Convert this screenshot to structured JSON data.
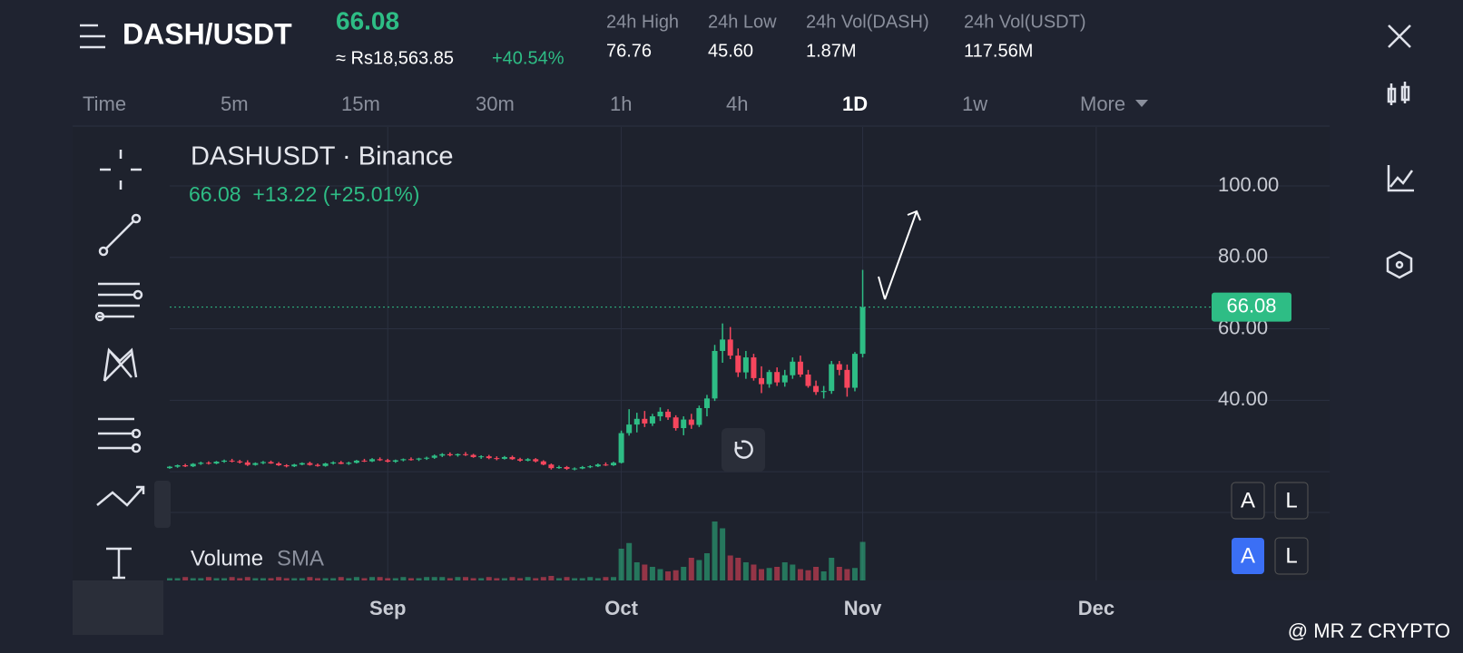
{
  "header": {
    "symbol": "DASH/USDT",
    "price": "66.08",
    "fiat_price": "≈ Rs18,563.85",
    "change": "+40.54%",
    "stats": [
      {
        "label": "24h High",
        "value": "76.76"
      },
      {
        "label": "24h Low",
        "value": "45.60"
      },
      {
        "label": "24h Vol(DASH)",
        "value": "1.87M"
      },
      {
        "label": "24h Vol(USDT)",
        "value": "117.56M"
      }
    ]
  },
  "timeframes": [
    "Time",
    "5m",
    "15m",
    "30m",
    "1h",
    "4h",
    "1D",
    "1w",
    "More"
  ],
  "chart_data": {
    "type": "candlestick",
    "title": "DASHUSDT · Binance",
    "subtitle": "66.08  +13.22 (+25.01%)",
    "volume_label": "Volume",
    "sma_label": "SMA",
    "last_price": 66.08,
    "last_price_label": "66.08",
    "up_color": "#2ebd85",
    "down_color": "#f6465d",
    "ylim": [
      8.6,
      116.5
    ],
    "yticks": [
      {
        "value": 20,
        "label": null
      },
      {
        "value": 40,
        "label": "40.00"
      },
      {
        "value": 60,
        "label": "60.00"
      },
      {
        "value": 80,
        "label": "80.00"
      },
      {
        "value": 100,
        "label": "100.00"
      }
    ],
    "xlim": [
      0,
      129.5
    ],
    "xticks": [
      {
        "value": 28,
        "label": "Sep"
      },
      {
        "value": 58,
        "label": "Oct"
      },
      {
        "value": 89,
        "label": "Nov"
      },
      {
        "value": 119,
        "label": "Dec"
      }
    ],
    "grid": true,
    "candles": [
      [
        21,
        21.6,
        20.8,
        21.4
      ],
      [
        21.4,
        22,
        21.1,
        21.8
      ],
      [
        21.8,
        22.2,
        21.3,
        21.5
      ],
      [
        21.5,
        22.4,
        21.3,
        22.2
      ],
      [
        22.2,
        22.8,
        21.9,
        22.5
      ],
      [
        22.5,
        22.9,
        22,
        22.3
      ],
      [
        22.3,
        23,
        22.1,
        22.8
      ],
      [
        22.8,
        23.4,
        22.5,
        23.1
      ],
      [
        23.1,
        23.6,
        22.6,
        22.9
      ],
      [
        22.9,
        23.3,
        22.3,
        22.6
      ],
      [
        22.6,
        23.2,
        21.6,
        21.9
      ],
      [
        21.9,
        22.6,
        21.7,
        22.4
      ],
      [
        22.4,
        23,
        22.1,
        22.7
      ],
      [
        22.7,
        23.1,
        22.2,
        22.3
      ],
      [
        22.3,
        22.7,
        21.6,
        21.8
      ],
      [
        21.8,
        22.1,
        21.2,
        21.5
      ],
      [
        21.5,
        22.2,
        21.3,
        22
      ],
      [
        22,
        22.6,
        21.8,
        22.4
      ],
      [
        22.4,
        22.8,
        21.7,
        21.9
      ],
      [
        21.9,
        22.3,
        21.4,
        21.6
      ],
      [
        21.6,
        22.5,
        21.4,
        22.3
      ],
      [
        22.3,
        22.9,
        22,
        22.6
      ],
      [
        22.6,
        23,
        22.1,
        22.2
      ],
      [
        22.2,
        22.8,
        21.9,
        22.5
      ],
      [
        22.5,
        23.3,
        22.3,
        23.1
      ],
      [
        23.1,
        23.6,
        22.7,
        22.9
      ],
      [
        22.9,
        23.8,
        22.7,
        23.5
      ],
      [
        23.5,
        24,
        23,
        23.2
      ],
      [
        23.2,
        23.6,
        22.6,
        22.8
      ],
      [
        22.8,
        23.4,
        22.5,
        23.2
      ],
      [
        23.2,
        23.7,
        22.9,
        23.5
      ],
      [
        23.5,
        24,
        23.1,
        23.4
      ],
      [
        23.4,
        23.9,
        23,
        23.7
      ],
      [
        23.7,
        24.2,
        23.3,
        23.9
      ],
      [
        23.9,
        24.8,
        23.6,
        24.5
      ],
      [
        24.5,
        25.2,
        24.1,
        24.9
      ],
      [
        24.9,
        25.4,
        24.3,
        24.6
      ],
      [
        24.6,
        25.1,
        24.2,
        24.9
      ],
      [
        24.9,
        25.5,
        24.4,
        24.7
      ],
      [
        24.7,
        25,
        23.9,
        24.1
      ],
      [
        24.1,
        24.6,
        23.6,
        24.3
      ],
      [
        24.3,
        24.7,
        23.5,
        23.8
      ],
      [
        23.8,
        24.3,
        23.2,
        23.6
      ],
      [
        23.6,
        24.4,
        23.4,
        24.1
      ],
      [
        24.1,
        24.5,
        23.3,
        23.5
      ],
      [
        23.5,
        23.9,
        22.8,
        23.1
      ],
      [
        23.1,
        23.8,
        22.9,
        23.5
      ],
      [
        23.5,
        23.8,
        22.6,
        22.9
      ],
      [
        22.9,
        23.2,
        21.8,
        22
      ],
      [
        22,
        22.3,
        20.6,
        21
      ],
      [
        21,
        21.7,
        20.8,
        21.3
      ],
      [
        21.3,
        21.6,
        20.5,
        20.8
      ],
      [
        20.8,
        21.2,
        20.4,
        20.9
      ],
      [
        20.9,
        21.6,
        20.7,
        21.3
      ],
      [
        21.3,
        21.8,
        21,
        21.5
      ],
      [
        21.5,
        22.3,
        21.3,
        22
      ],
      [
        22,
        22.6,
        21.6,
        21.8
      ],
      [
        21.8,
        22.8,
        21.6,
        22.5
      ],
      [
        22.5,
        31.5,
        22.3,
        30.8
      ],
      [
        30.8,
        37.5,
        30.1,
        33.2
      ],
      [
        33.2,
        36.5,
        31,
        34.8
      ],
      [
        34.8,
        37,
        32.5,
        33.5
      ],
      [
        33.5,
        36.2,
        32.8,
        35.5
      ],
      [
        35.5,
        38,
        34.2,
        36.8
      ],
      [
        36.8,
        37.5,
        34.5,
        35.2
      ],
      [
        35.2,
        35.8,
        31.5,
        32.2
      ],
      [
        32.2,
        35.5,
        30.2,
        34.6
      ],
      [
        34.6,
        36.2,
        32,
        33.1
      ],
      [
        33.1,
        38.5,
        32.5,
        37.8
      ],
      [
        37.8,
        41.5,
        35.5,
        40.5
      ],
      [
        40.5,
        55.5,
        39.8,
        53.8
      ],
      [
        53.8,
        61.5,
        50.5,
        57
      ],
      [
        57,
        60.5,
        51.5,
        52.5
      ],
      [
        52.5,
        54.5,
        46.5,
        47.8
      ],
      [
        47.8,
        53.8,
        46,
        52
      ],
      [
        52,
        53,
        45.5,
        46.2
      ],
      [
        46.2,
        49.5,
        42,
        44.5
      ],
      [
        44.5,
        48.5,
        43.5,
        47.9
      ],
      [
        47.9,
        49.2,
        44,
        45
      ],
      [
        45,
        48.5,
        43.8,
        47
      ],
      [
        47,
        52,
        46,
        50.8
      ],
      [
        50.8,
        52.5,
        46.5,
        47.2
      ],
      [
        47.2,
        48.5,
        43.5,
        44
      ],
      [
        44,
        45.5,
        41.5,
        42.3
      ],
      [
        42.3,
        44,
        40.5,
        42.6
      ],
      [
        42.6,
        51,
        41.8,
        50.1
      ],
      [
        50.1,
        51,
        47,
        48.5
      ],
      [
        48.5,
        50,
        41,
        43.5
      ],
      [
        43.5,
        53.5,
        42.5,
        53
      ],
      [
        53,
        76.5,
        52,
        66.08
      ]
    ],
    "volumes": [
      2,
      2,
      3,
      2,
      2,
      3,
      2,
      2,
      3,
      2,
      3,
      2,
      2,
      2,
      3,
      2,
      2,
      2,
      3,
      2,
      2,
      2,
      3,
      2,
      3,
      2,
      3,
      3,
      2,
      2,
      3,
      2,
      2,
      3,
      3,
      3,
      2,
      3,
      3,
      2,
      2,
      3,
      2,
      2,
      3,
      2,
      3,
      2,
      3,
      4,
      2,
      3,
      2,
      2,
      3,
      2,
      3,
      3,
      28,
      33,
      16,
      14,
      12,
      10,
      8,
      9,
      12,
      20,
      18,
      24,
      52,
      46,
      22,
      20,
      16,
      14,
      10,
      11,
      12,
      16,
      14,
      10,
      9,
      12,
      8,
      20,
      12,
      10,
      11,
      34
    ],
    "volume_ylim": [
      0,
      60
    ],
    "watermark": "@ MR Z CRYPTO"
  }
}
